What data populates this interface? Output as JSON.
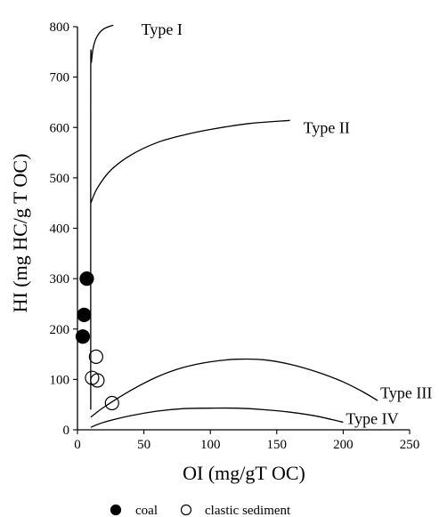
{
  "chart_data": {
    "type": "scatter",
    "xlabel": "OI (mg/gT OC)",
    "ylabel": "HI (mg HC/g T OC)",
    "xlim": [
      0,
      250
    ],
    "ylim": [
      0,
      800
    ],
    "xticks": [
      "0",
      "50",
      "100",
      "150",
      "200",
      "250"
    ],
    "yticks": [
      "0",
      "100",
      "200",
      "300",
      "400",
      "500",
      "600",
      "700",
      "800"
    ],
    "grid": false,
    "series": [
      {
        "name": "coal",
        "marker": "filled-circle",
        "color": "#000000",
        "points": [
          {
            "x": 7,
            "y": 300
          },
          {
            "x": 5,
            "y": 228
          },
          {
            "x": 4,
            "y": 185
          }
        ]
      },
      {
        "name": "clastic sediment",
        "marker": "open-circle",
        "color": "#000000",
        "points": [
          {
            "x": 14,
            "y": 145
          },
          {
            "x": 11,
            "y": 103
          },
          {
            "x": 15,
            "y": 98
          },
          {
            "x": 26,
            "y": 53
          }
        ]
      }
    ],
    "curves": [
      {
        "name": "Type I",
        "points": [
          [
            10,
            40
          ],
          [
            10,
            695
          ],
          [
            10.5,
            730
          ],
          [
            12,
            760
          ],
          [
            15,
            782
          ],
          [
            20,
            796
          ],
          [
            27,
            803
          ]
        ]
      },
      {
        "name": "Type II",
        "points": [
          [
            10,
            450
          ],
          [
            15,
            480
          ],
          [
            25,
            515
          ],
          [
            40,
            545
          ],
          [
            60,
            570
          ],
          [
            80,
            585
          ],
          [
            100,
            596
          ],
          [
            130,
            608
          ],
          [
            160,
            614
          ]
        ]
      },
      {
        "name": "Type III",
        "points": [
          [
            10,
            25
          ],
          [
            20,
            45
          ],
          [
            40,
            78
          ],
          [
            60,
            105
          ],
          [
            80,
            124
          ],
          [
            100,
            135
          ],
          [
            120,
            140
          ],
          [
            140,
            139
          ],
          [
            160,
            130
          ],
          [
            180,
            115
          ],
          [
            200,
            95
          ],
          [
            215,
            75
          ],
          [
            226,
            58
          ]
        ]
      },
      {
        "name": "Type IV",
        "points": [
          [
            10,
            5
          ],
          [
            20,
            15
          ],
          [
            40,
            28
          ],
          [
            60,
            37
          ],
          [
            80,
            42
          ],
          [
            100,
            43
          ],
          [
            120,
            43
          ],
          [
            140,
            40
          ],
          [
            160,
            35
          ],
          [
            180,
            27
          ],
          [
            200,
            15
          ]
        ]
      }
    ],
    "labels": [
      {
        "text": "Type I",
        "x": 48,
        "y": 795
      },
      {
        "text": "Type II",
        "x": 170,
        "y": 600
      },
      {
        "text": "Type III",
        "x": 228,
        "y": 73
      },
      {
        "text": "Type IV",
        "x": 202,
        "y": 22
      }
    ],
    "legend": {
      "position": "bottom",
      "items": [
        {
          "label": "coal",
          "marker": "filled-circle"
        },
        {
          "label": "clastic sediment",
          "marker": "open-circle"
        }
      ]
    }
  }
}
